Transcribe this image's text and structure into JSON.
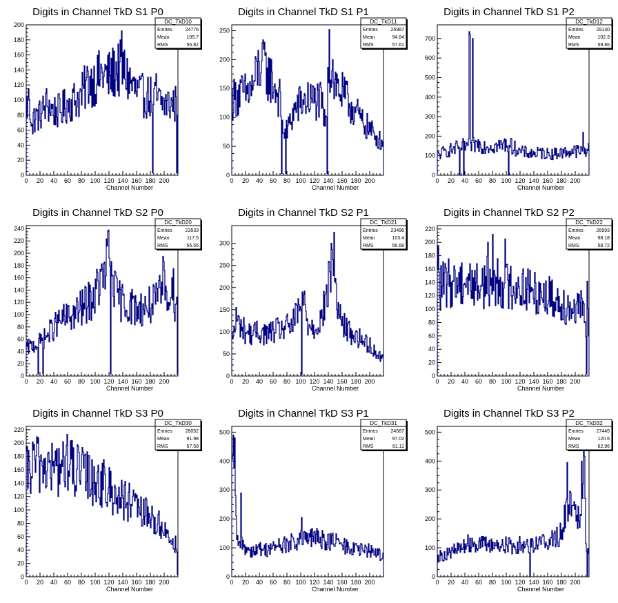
{
  "chart_data": [
    {
      "type": "histogram",
      "title": "Digits in Channel TkD S1 P0",
      "xlabel": "Channel Number",
      "xlim": [
        0,
        220
      ],
      "ylim": [
        0,
        200
      ],
      "xticks": [
        0,
        20,
        40,
        60,
        80,
        100,
        120,
        140,
        160,
        180,
        200
      ],
      "yticks": [
        0,
        20,
        40,
        60,
        80,
        100,
        120,
        140,
        160,
        180,
        200
      ],
      "stats": {
        "name": "DC_TkD10",
        "entries": "24776",
        "mean": "105.7",
        "rms": "56.82"
      },
      "profile": [
        [
          0,
          95
        ],
        [
          5,
          85
        ],
        [
          10,
          75
        ],
        [
          20,
          80
        ],
        [
          30,
          95
        ],
        [
          40,
          85
        ],
        [
          50,
          85
        ],
        [
          60,
          95
        ],
        [
          70,
          100
        ],
        [
          80,
          105
        ],
        [
          90,
          125
        ],
        [
          100,
          125
        ],
        [
          110,
          135
        ],
        [
          120,
          130
        ],
        [
          130,
          140
        ],
        [
          140,
          140
        ],
        [
          150,
          125
        ],
        [
          160,
          110
        ],
        [
          170,
          105
        ],
        [
          180,
          105
        ],
        [
          185,
          100
        ],
        [
          190,
          100
        ],
        [
          200,
          95
        ],
        [
          210,
          95
        ],
        [
          220,
          95
        ]
      ],
      "spikes": [
        [
          138,
          192
        ],
        [
          136,
          180
        ],
        [
          183,
          3
        ],
        [
          188,
          135
        ],
        [
          218,
          3
        ],
        [
          9,
          55
        ],
        [
          3,
          115
        ]
      ]
    },
    {
      "type": "histogram",
      "title": "Digits in Channel TkD S1 P1",
      "xlabel": "Channel Number",
      "xlim": [
        0,
        220
      ],
      "ylim": [
        0,
        260
      ],
      "xticks": [
        0,
        20,
        40,
        60,
        80,
        100,
        120,
        140,
        160,
        180,
        200
      ],
      "yticks": [
        0,
        50,
        100,
        150,
        200,
        250
      ],
      "stats": {
        "name": "DC_TkD11",
        "entries": "26987",
        "mean": "94.84",
        "rms": "57.61"
      },
      "profile": [
        [
          0,
          130
        ],
        [
          10,
          140
        ],
        [
          20,
          140
        ],
        [
          30,
          150
        ],
        [
          40,
          190
        ],
        [
          50,
          180
        ],
        [
          60,
          160
        ],
        [
          70,
          130
        ],
        [
          73,
          80
        ],
        [
          80,
          75
        ],
        [
          90,
          110
        ],
        [
          100,
          125
        ],
        [
          110,
          130
        ],
        [
          120,
          130
        ],
        [
          130,
          125
        ],
        [
          137,
          80
        ],
        [
          140,
          210
        ],
        [
          145,
          170
        ],
        [
          150,
          160
        ],
        [
          160,
          140
        ],
        [
          170,
          125
        ],
        [
          180,
          110
        ],
        [
          190,
          90
        ],
        [
          200,
          80
        ],
        [
          210,
          65
        ],
        [
          220,
          55
        ]
      ],
      "spikes": [
        [
          72,
          3
        ],
        [
          78,
          3
        ],
        [
          138,
          3
        ],
        [
          141,
          252
        ],
        [
          146,
          200
        ],
        [
          46,
          218
        ]
      ]
    },
    {
      "type": "histogram",
      "title": "Digits in Channel TkD S1 P2",
      "xlabel": "Channel Number",
      "xlim": [
        0,
        220
      ],
      "ylim": [
        0,
        770
      ],
      "xticks": [
        0,
        20,
        40,
        60,
        80,
        100,
        120,
        140,
        160,
        180,
        200
      ],
      "yticks": [
        0,
        100,
        200,
        300,
        400,
        500,
        600,
        700
      ],
      "stats": {
        "name": "DC_TkD12",
        "entries": "29130",
        "mean": "102.3",
        "rms": "59.86"
      },
      "profile": [
        [
          0,
          100
        ],
        [
          10,
          120
        ],
        [
          20,
          130
        ],
        [
          30,
          140
        ],
        [
          40,
          150
        ],
        [
          50,
          155
        ],
        [
          60,
          160
        ],
        [
          70,
          150
        ],
        [
          80,
          150
        ],
        [
          90,
          150
        ],
        [
          100,
          160
        ],
        [
          110,
          145
        ],
        [
          120,
          120
        ],
        [
          130,
          115
        ],
        [
          140,
          110
        ],
        [
          150,
          115
        ],
        [
          160,
          110
        ],
        [
          170,
          110
        ],
        [
          180,
          115
        ],
        [
          190,
          120
        ],
        [
          200,
          125
        ],
        [
          210,
          120
        ],
        [
          215,
          130
        ]
      ],
      "spikes": [
        [
          32,
          3
        ],
        [
          38,
          3
        ],
        [
          46,
          735
        ],
        [
          47,
          720
        ],
        [
          51,
          700
        ],
        [
          103,
          3
        ],
        [
          211,
          220
        ]
      ]
    },
    {
      "type": "histogram",
      "title": "Digits in Channel TkD S2 P0",
      "xlabel": "Channel Number",
      "xlim": [
        0,
        220
      ],
      "ylim": [
        0,
        245
      ],
      "xticks": [
        0,
        20,
        40,
        60,
        80,
        100,
        120,
        140,
        160,
        180,
        200
      ],
      "yticks": [
        0,
        20,
        40,
        60,
        80,
        100,
        120,
        140,
        160,
        180,
        200,
        220,
        240
      ],
      "stats": {
        "name": "DC_TkD20",
        "entries": "23533",
        "mean": "117.5",
        "rms": "55.55"
      },
      "profile": [
        [
          0,
          45
        ],
        [
          10,
          50
        ],
        [
          20,
          55
        ],
        [
          30,
          65
        ],
        [
          40,
          80
        ],
        [
          50,
          90
        ],
        [
          60,
          95
        ],
        [
          70,
          100
        ],
        [
          80,
          110
        ],
        [
          90,
          120
        ],
        [
          100,
          130
        ],
        [
          105,
          150
        ],
        [
          110,
          155
        ],
        [
          115,
          170
        ],
        [
          120,
          200
        ],
        [
          125,
          170
        ],
        [
          130,
          130
        ],
        [
          140,
          120
        ],
        [
          150,
          115
        ],
        [
          160,
          110
        ],
        [
          170,
          110
        ],
        [
          180,
          115
        ],
        [
          190,
          120
        ],
        [
          200,
          150
        ],
        [
          210,
          130
        ],
        [
          215,
          120
        ]
      ],
      "spikes": [
        [
          118,
          236
        ],
        [
          122,
          3
        ],
        [
          17,
          3
        ],
        [
          24,
          3
        ],
        [
          198,
          195
        ],
        [
          213,
          175
        ],
        [
          219,
          3
        ]
      ]
    },
    {
      "type": "histogram",
      "title": "Digits in Channel TkD S2 P1",
      "xlabel": "Channel Number",
      "xlim": [
        0,
        220
      ],
      "ylim": [
        0,
        340
      ],
      "xticks": [
        0,
        20,
        40,
        60,
        80,
        100,
        120,
        140,
        160,
        180,
        200
      ],
      "yticks": [
        0,
        50,
        100,
        150,
        200,
        250,
        300
      ],
      "stats": {
        "name": "DC_TkD21",
        "entries": "23496",
        "mean": "103.4",
        "rms": "56.68"
      },
      "profile": [
        [
          0,
          80
        ],
        [
          5,
          110
        ],
        [
          10,
          120
        ],
        [
          20,
          100
        ],
        [
          30,
          95
        ],
        [
          40,
          100
        ],
        [
          50,
          95
        ],
        [
          60,
          100
        ],
        [
          70,
          105
        ],
        [
          80,
          110
        ],
        [
          90,
          120
        ],
        [
          100,
          160
        ],
        [
          105,
          170
        ],
        [
          110,
          120
        ],
        [
          120,
          110
        ],
        [
          130,
          130
        ],
        [
          135,
          160
        ],
        [
          140,
          200
        ],
        [
          145,
          260
        ],
        [
          150,
          220
        ],
        [
          155,
          140
        ],
        [
          160,
          120
        ],
        [
          170,
          100
        ],
        [
          180,
          90
        ],
        [
          190,
          80
        ],
        [
          200,
          70
        ],
        [
          210,
          50
        ],
        [
          220,
          40
        ]
      ],
      "spikes": [
        [
          101,
          3
        ],
        [
          148,
          325
        ],
        [
          144,
          300
        ],
        [
          6,
          155
        ]
      ]
    },
    {
      "type": "histogram",
      "title": "Digits in Channel TkD S2 P2",
      "xlabel": "Channel Number",
      "xlim": [
        0,
        220
      ],
      "ylim": [
        0,
        225
      ],
      "xticks": [
        0,
        20,
        40,
        60,
        80,
        100,
        120,
        140,
        160,
        180,
        200
      ],
      "yticks": [
        0,
        20,
        40,
        60,
        80,
        100,
        120,
        140,
        160,
        180,
        200,
        220
      ],
      "stats": {
        "name": "DC_TkD22",
        "entries": "26993",
        "mean": "98.18",
        "rms": "58.72"
      },
      "profile": [
        [
          0,
          130
        ],
        [
          10,
          135
        ],
        [
          20,
          140
        ],
        [
          30,
          140
        ],
        [
          40,
          145
        ],
        [
          50,
          140
        ],
        [
          60,
          135
        ],
        [
          70,
          140
        ],
        [
          80,
          145
        ],
        [
          90,
          140
        ],
        [
          100,
          135
        ],
        [
          110,
          135
        ],
        [
          120,
          135
        ],
        [
          130,
          130
        ],
        [
          140,
          125
        ],
        [
          150,
          125
        ],
        [
          160,
          120
        ],
        [
          170,
          115
        ],
        [
          180,
          110
        ],
        [
          190,
          105
        ],
        [
          200,
          100
        ],
        [
          210,
          100
        ],
        [
          214,
          80
        ]
      ],
      "spikes": [
        [
          80,
          212
        ],
        [
          98,
          205
        ],
        [
          73,
          200
        ],
        [
          1,
          195
        ],
        [
          216,
          3
        ],
        [
          217,
          142
        ]
      ]
    },
    {
      "type": "histogram",
      "title": "Digits in Channel TkD S3 P0",
      "xlabel": "Channel Number",
      "xlim": [
        0,
        220
      ],
      "ylim": [
        0,
        225
      ],
      "xticks": [
        0,
        20,
        40,
        60,
        80,
        100,
        120,
        140,
        160,
        180,
        200
      ],
      "yticks": [
        0,
        20,
        40,
        60,
        80,
        100,
        120,
        140,
        160,
        180,
        200,
        220
      ],
      "stats": {
        "name": "DC_TkD30",
        "entries": "28052",
        "mean": "91.98",
        "rms": "57.58"
      },
      "profile": [
        [
          0,
          150
        ],
        [
          10,
          165
        ],
        [
          20,
          170
        ],
        [
          30,
          165
        ],
        [
          40,
          160
        ],
        [
          50,
          165
        ],
        [
          60,
          165
        ],
        [
          70,
          160
        ],
        [
          80,
          155
        ],
        [
          90,
          150
        ],
        [
          100,
          145
        ],
        [
          110,
          140
        ],
        [
          120,
          130
        ],
        [
          130,
          125
        ],
        [
          140,
          115
        ],
        [
          150,
          110
        ],
        [
          160,
          100
        ],
        [
          170,
          95
        ],
        [
          180,
          90
        ],
        [
          190,
          80
        ],
        [
          200,
          70
        ],
        [
          210,
          55
        ],
        [
          220,
          45
        ]
      ],
      "spikes": [
        [
          59,
          213
        ],
        [
          11,
          198
        ],
        [
          219,
          3
        ]
      ]
    },
    {
      "type": "histogram",
      "title": "Digits in Channel TkD S3 P1",
      "xlabel": "Channel Number",
      "xlim": [
        0,
        220
      ],
      "ylim": [
        0,
        520
      ],
      "xticks": [
        0,
        20,
        40,
        60,
        80,
        100,
        120,
        140,
        160,
        180,
        200
      ],
      "yticks": [
        0,
        100,
        200,
        300,
        400,
        500
      ],
      "stats": {
        "name": "DC_TkD31",
        "entries": "24587",
        "mean": "97.02",
        "rms": "61.11"
      },
      "profile": [
        [
          0,
          300
        ],
        [
          3,
          420
        ],
        [
          6,
          180
        ],
        [
          10,
          100
        ],
        [
          15,
          120
        ],
        [
          20,
          100
        ],
        [
          30,
          90
        ],
        [
          40,
          95
        ],
        [
          50,
          95
        ],
        [
          60,
          100
        ],
        [
          70,
          110
        ],
        [
          80,
          110
        ],
        [
          90,
          120
        ],
        [
          100,
          125
        ],
        [
          110,
          130
        ],
        [
          120,
          135
        ],
        [
          130,
          130
        ],
        [
          140,
          125
        ],
        [
          150,
          120
        ],
        [
          160,
          110
        ],
        [
          170,
          100
        ],
        [
          180,
          95
        ],
        [
          190,
          90
        ],
        [
          200,
          90
        ],
        [
          210,
          85
        ],
        [
          220,
          70
        ]
      ],
      "spikes": [
        [
          2,
          490
        ],
        [
          4,
          480
        ],
        [
          13,
          290
        ],
        [
          101,
          205
        ],
        [
          220,
          40
        ]
      ]
    },
    {
      "type": "histogram",
      "title": "Digits in Channel TkD S3 P2",
      "xlabel": "Channel Number",
      "xlim": [
        0,
        220
      ],
      "ylim": [
        0,
        520
      ],
      "xticks": [
        0,
        20,
        40,
        60,
        80,
        100,
        120,
        140,
        160,
        180,
        200
      ],
      "yticks": [
        0,
        100,
        200,
        300,
        400,
        500
      ],
      "stats": {
        "name": "DC_TkD32",
        "entries": "27445",
        "mean": "120.6",
        "rms": "62.96"
      },
      "profile": [
        [
          0,
          70
        ],
        [
          10,
          75
        ],
        [
          20,
          85
        ],
        [
          30,
          95
        ],
        [
          40,
          110
        ],
        [
          50,
          120
        ],
        [
          60,
          115
        ],
        [
          70,
          110
        ],
        [
          80,
          110
        ],
        [
          90,
          110
        ],
        [
          100,
          110
        ],
        [
          110,
          105
        ],
        [
          120,
          110
        ],
        [
          130,
          110
        ],
        [
          140,
          115
        ],
        [
          150,
          120
        ],
        [
          160,
          125
        ],
        [
          170,
          130
        ],
        [
          180,
          150
        ],
        [
          185,
          200
        ],
        [
          190,
          250
        ],
        [
          195,
          280
        ],
        [
          200,
          230
        ],
        [
          205,
          200
        ],
        [
          210,
          300
        ],
        [
          213,
          450
        ],
        [
          216,
          100
        ]
      ],
      "spikes": [
        [
          209,
          400
        ],
        [
          212,
          440
        ],
        [
          188,
          395
        ],
        [
          134,
          3
        ],
        [
          217,
          3
        ]
      ]
    }
  ]
}
